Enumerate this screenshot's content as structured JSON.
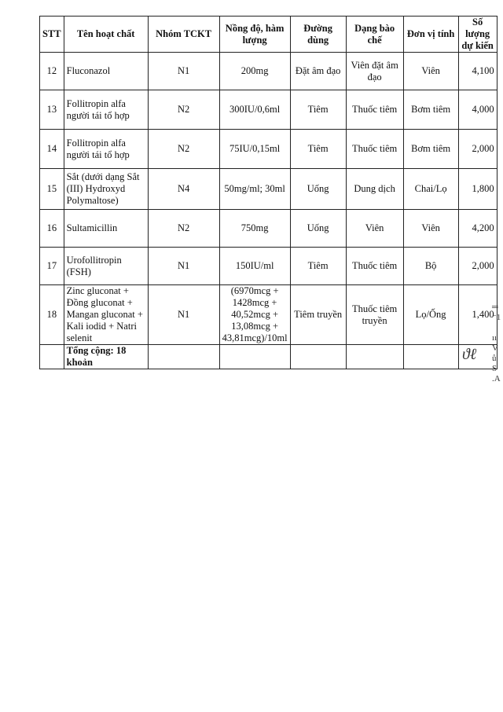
{
  "table": {
    "headers": [
      "STT",
      "Tên hoạt chất",
      "Nhóm TCKT",
      "Nồng độ, hàm lượng",
      "Đường dùng",
      "Dạng bào chế",
      "Đơn vị tính",
      "Số lượng dự kiến"
    ],
    "rows": [
      [
        "12",
        "Fluconazol",
        "N1",
        "200mg",
        "Đặt âm đạo",
        "Viên đặt âm đạo",
        "Viên",
        "4,100"
      ],
      [
        "13",
        "Follitropin alfa người tái tổ hợp",
        "N2",
        "300IU/0,6ml",
        "Tiêm",
        "Thuốc tiêm",
        "Bơm tiêm",
        "4,000"
      ],
      [
        "14",
        "Follitropin alfa người tái tổ hợp",
        "N2",
        "75IU/0,15ml",
        "Tiêm",
        "Thuốc tiêm",
        "Bơm tiêm",
        "2,000"
      ],
      [
        "15",
        "Sắt (dưới dạng Sắt (III) Hydroxyd Polymaltose)",
        "N4",
        "50mg/ml; 30ml",
        "Uống",
        "Dung dịch",
        "Chai/Lọ",
        "1,800"
      ],
      [
        "16",
        "Sultamicillin",
        "N2",
        "750mg",
        "Uống",
        "Viên",
        "Viên",
        "4,200"
      ],
      [
        "17",
        "Urofollitropin (FSH)",
        "N1",
        "150IU/ml",
        "Tiêm",
        "Thuốc tiêm",
        "Bộ",
        "2,000"
      ],
      [
        "18",
        "Zinc gluconat + Đồng gluconat + Mangan gluconat + Kali iodid + Natri selenit",
        "N1",
        "(6970mcg + 1428mcg + 40,52mcg + 13,08mcg + 43,81mcg)/10ml",
        "Tiêm truyền",
        "Thuốc tiêm truyền",
        "Lọ/Ống",
        "1,400"
      ]
    ],
    "total_label": "Tổng cộng: 18 khoản"
  }
}
